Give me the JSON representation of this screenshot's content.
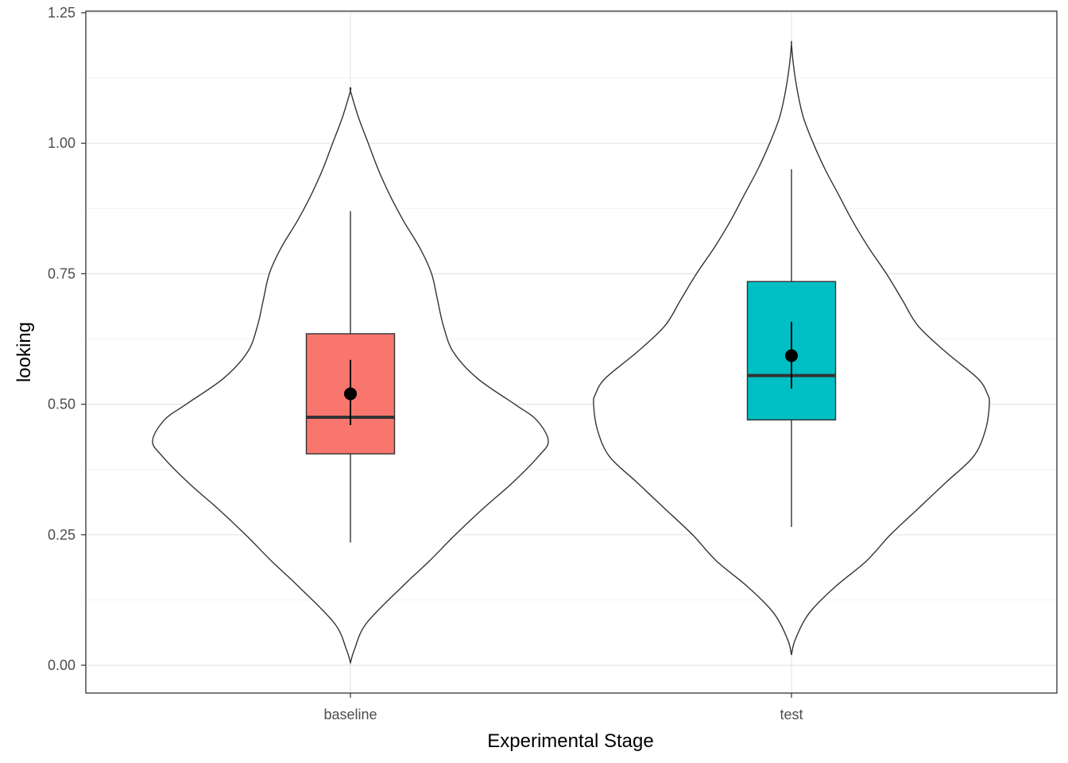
{
  "chart_data": {
    "type": "violin",
    "xlabel": "Experimental Stage",
    "ylabel": "looking",
    "categories": [
      "baseline",
      "test"
    ],
    "ylim": [
      -0.05,
      1.25
    ],
    "yticks": [
      "0.00",
      "0.25",
      "0.50",
      "0.75",
      "1.00",
      "1.25"
    ],
    "ytick_values": [
      0.0,
      0.25,
      0.5,
      0.75,
      1.0,
      1.25
    ],
    "grid": true,
    "groups": [
      {
        "category": "baseline",
        "fill": "#F8766D",
        "box": {
          "whisker_low": 0.235,
          "q1": 0.405,
          "median": 0.475,
          "q3": 0.635,
          "whisker_high": 0.87
        },
        "mean": 0.52,
        "ci": [
          0.46,
          0.585
        ],
        "violin": {
          "y": [
            0.005,
            0.03,
            0.08,
            0.15,
            0.2,
            0.25,
            0.3,
            0.35,
            0.4,
            0.43,
            0.47,
            0.5,
            0.55,
            0.6,
            0.65,
            0.7,
            0.75,
            0.8,
            0.85,
            0.9,
            0.95,
            1.0,
            1.05,
            1.1
          ],
          "width": [
            0.0,
            0.02,
            0.08,
            0.26,
            0.4,
            0.53,
            0.67,
            0.82,
            0.95,
            1.0,
            0.94,
            0.83,
            0.64,
            0.52,
            0.47,
            0.44,
            0.41,
            0.35,
            0.27,
            0.2,
            0.14,
            0.09,
            0.04,
            0.0
          ]
        }
      },
      {
        "category": "test",
        "fill": "#00BFC4",
        "box": {
          "whisker_low": 0.265,
          "q1": 0.47,
          "median": 0.555,
          "q3": 0.735,
          "whisker_high": 0.95
        },
        "mean": 0.593,
        "ci": [
          0.53,
          0.658
        ],
        "violin": {
          "y": [
            0.02,
            0.05,
            0.1,
            0.15,
            0.2,
            0.25,
            0.3,
            0.35,
            0.4,
            0.45,
            0.5,
            0.52,
            0.55,
            0.6,
            0.65,
            0.7,
            0.75,
            0.8,
            0.85,
            0.9,
            0.95,
            1.0,
            1.05,
            1.1,
            1.15,
            1.19
          ],
          "width": [
            0.0,
            0.02,
            0.09,
            0.22,
            0.38,
            0.5,
            0.64,
            0.78,
            0.92,
            0.98,
            1.0,
            0.99,
            0.94,
            0.78,
            0.64,
            0.56,
            0.48,
            0.39,
            0.31,
            0.24,
            0.17,
            0.11,
            0.06,
            0.03,
            0.01,
            0.0
          ]
        }
      }
    ]
  }
}
